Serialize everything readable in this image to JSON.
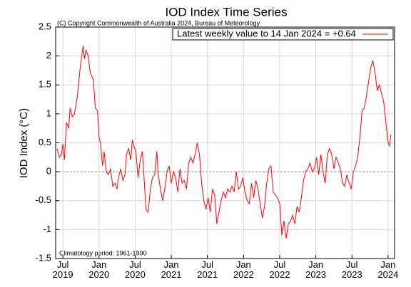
{
  "chart_data": {
    "type": "line",
    "title": "IOD Index Time Series",
    "subtitle": "(C) Copyright Commonwealth of Australia 2024, Bureau of Meteorology",
    "y_label": "IOD Index (°C)",
    "annotation": "Climatology period: 1961-1990",
    "grid": true,
    "legend": "upper right",
    "xlim": [
      2019.4,
      2024.09
    ],
    "ylim": [
      -1.5,
      2.5
    ],
    "xticks": [
      {
        "value": 2019.5,
        "label": "Jul 2019"
      },
      {
        "value": 2020.0,
        "label": "Jan 2020"
      },
      {
        "value": 2020.5,
        "label": "Jul 2020"
      },
      {
        "value": 2021.0,
        "label": "Jan 2021"
      },
      {
        "value": 2021.5,
        "label": "Jul 2021"
      },
      {
        "value": 2022.0,
        "label": "Jan 2022"
      },
      {
        "value": 2022.5,
        "label": "Jul 2022"
      },
      {
        "value": 2023.0,
        "label": "Jan 2023"
      },
      {
        "value": 2023.5,
        "label": "Jul 2023"
      },
      {
        "value": 2024.0,
        "label": "Jan 2024"
      }
    ],
    "yticks": [
      -1.5,
      -1,
      -0.5,
      0,
      0.5,
      1,
      1.5,
      2,
      2.5
    ],
    "x": [
      2019.42,
      2019.45,
      2019.48,
      2019.5,
      2019.52,
      2019.55,
      2019.58,
      2019.6,
      2019.63,
      2019.66,
      2019.7,
      2019.74,
      2019.78,
      2019.8,
      2019.82,
      2019.85,
      2019.88,
      2019.92,
      2019.95,
      2019.98,
      2020.0,
      2020.02,
      2020.05,
      2020.07,
      2020.1,
      2020.13,
      2020.16,
      2020.19,
      2020.22,
      2020.25,
      2020.27,
      2020.3,
      2020.33,
      2020.36,
      2020.38,
      2020.41,
      2020.44,
      2020.46,
      2020.48,
      2020.51,
      2020.54,
      2020.57,
      2020.6,
      2020.62,
      2020.65,
      2020.68,
      2020.71,
      2020.74,
      2020.77,
      2020.8,
      2020.82,
      2020.85,
      2020.88,
      2020.91,
      2020.94,
      2020.97,
      2021.0,
      2021.03,
      2021.06,
      2021.09,
      2021.12,
      2021.15,
      2021.18,
      2021.21,
      2021.24,
      2021.27,
      2021.3,
      2021.33,
      2021.36,
      2021.39,
      2021.42,
      2021.45,
      2021.48,
      2021.51,
      2021.54,
      2021.57,
      2021.6,
      2021.63,
      2021.66,
      2021.69,
      2021.72,
      2021.75,
      2021.78,
      2021.81,
      2021.84,
      2021.87,
      2021.9,
      2021.93,
      2021.96,
      2021.99,
      2022.02,
      2022.05,
      2022.08,
      2022.11,
      2022.14,
      2022.17,
      2022.2,
      2022.23,
      2022.26,
      2022.29,
      2022.32,
      2022.35,
      2022.38,
      2022.41,
      2022.44,
      2022.47,
      2022.5,
      2022.53,
      2022.56,
      2022.59,
      2022.62,
      2022.65,
      2022.68,
      2022.71,
      2022.74,
      2022.77,
      2022.8,
      2022.83,
      2022.86,
      2022.89,
      2022.92,
      2022.95,
      2022.98,
      2023.01,
      2023.04,
      2023.07,
      2023.1,
      2023.13,
      2023.16,
      2023.19,
      2023.22,
      2023.25,
      2023.28,
      2023.31,
      2023.34,
      2023.37,
      2023.4,
      2023.43,
      2023.46,
      2023.49,
      2023.52,
      2023.55,
      2023.58,
      2023.61,
      2023.64,
      2023.67,
      2023.7,
      2023.73,
      2023.76,
      2023.79,
      2023.82,
      2023.85,
      2023.88,
      2023.91,
      2023.94,
      2023.97,
      2024.0,
      2024.02,
      2024.04
    ],
    "series": [
      {
        "name": "Latest weekly value to 14 Jan 2024 = +0.64",
        "color": "#ff0000",
        "values": [
          0.4,
          0.25,
          0.3,
          0.48,
          0.2,
          0.85,
          0.75,
          1.1,
          0.95,
          1.0,
          1.3,
          1.8,
          2.18,
          1.95,
          2.1,
          2.0,
          1.7,
          1.6,
          1.1,
          1.05,
          0.6,
          0.5,
          0.1,
          0.35,
          0.0,
          -0.05,
          0.05,
          -0.25,
          -0.2,
          -0.3,
          -0.1,
          0.05,
          -0.15,
          -0.05,
          0.3,
          0.4,
          0.2,
          0.55,
          0.45,
          0.35,
          -0.1,
          0.2,
          0.35,
          -0.05,
          -0.65,
          -0.7,
          -0.3,
          -0.1,
          -0.05,
          0.35,
          -0.05,
          -0.3,
          -0.5,
          -0.3,
          0.0,
          0.1,
          -0.2,
          0.0,
          -0.1,
          -0.35,
          0.05,
          -0.2,
          -0.15,
          -0.3,
          0.15,
          0.25,
          0.15,
          0.3,
          0.5,
          0.3,
          -0.2,
          -0.5,
          -0.65,
          -0.45,
          -0.7,
          -0.3,
          -0.4,
          -0.9,
          -0.7,
          -0.5,
          -0.35,
          -0.45,
          -0.3,
          -0.35,
          -0.25,
          -0.35,
          0.0,
          -0.3,
          -0.25,
          -0.1,
          -0.35,
          -0.5,
          -0.55,
          -0.2,
          -0.45,
          -0.15,
          -0.3,
          -0.55,
          -0.8,
          -0.6,
          -0.2,
          0.05,
          0.1,
          -0.35,
          -0.4,
          -0.45,
          -0.55,
          -1.1,
          -0.85,
          -1.15,
          -0.9,
          -0.85,
          -0.75,
          -0.9,
          -0.6,
          -0.7,
          -0.45,
          -0.15,
          0.0,
          0.05,
          0.15,
          0.0,
          0.05,
          0.25,
          -0.05,
          0.3,
          0.0,
          -0.2,
          0.3,
          0.4,
          0.3,
          0.05,
          0.25,
          0.15,
          0.05,
          -0.2,
          -0.25,
          -0.05,
          -0.2,
          -0.3,
          0.0,
          0.1,
          0.25,
          0.6,
          1.05,
          1.1,
          1.3,
          1.55,
          1.8,
          1.92,
          1.7,
          1.4,
          1.5,
          1.35,
          1.2,
          0.85,
          0.5,
          0.45,
          0.64
        ]
      }
    ]
  }
}
